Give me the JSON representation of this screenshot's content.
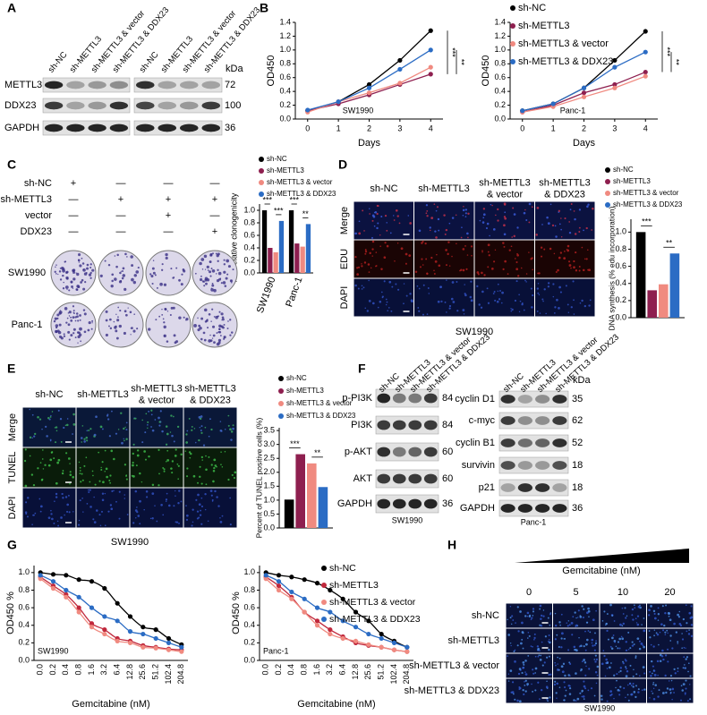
{
  "chart_data": [
    {
      "type": "line",
      "x": [
        0,
        1,
        2,
        3,
        4
      ],
      "xlim": [
        -0.4,
        4.4
      ],
      "xticks": [
        0,
        1,
        2,
        3,
        4
      ],
      "ylim": [
        0,
        1.4
      ],
      "yticks": [
        {
          "value": 0,
          "label": "0.0"
        },
        0.2,
        0.4,
        0.6,
        0.8,
        {
          "value": 1,
          "label": "1.0"
        },
        1.2,
        1.4
      ],
      "xlabel": "Days",
      "ylabel": "OD450",
      "annotation": "SW1990",
      "significance": [
        "***",
        "**"
      ],
      "series": [
        {
          "color": "#000000",
          "values": [
            0.12,
            0.25,
            0.5,
            0.85,
            1.28
          ]
        },
        {
          "color": "#8e1f4f",
          "values": [
            0.12,
            0.22,
            0.35,
            0.5,
            0.65
          ]
        },
        {
          "color": "#f08a80",
          "values": [
            0.1,
            0.25,
            0.38,
            0.52,
            0.75
          ]
        },
        {
          "color": "#2b6cc4",
          "values": [
            0.13,
            0.25,
            0.45,
            0.72,
            1.0
          ]
        }
      ]
    },
    {
      "type": "line",
      "x": [
        0,
        1,
        2,
        3,
        4
      ],
      "xlim": [
        -0.4,
        4.4
      ],
      "xticks": [
        0,
        1,
        2,
        3,
        4
      ],
      "ylim": [
        0,
        1.4
      ],
      "yticks": [
        {
          "value": 0,
          "label": "0.0"
        },
        0.2,
        0.4,
        0.6,
        0.8,
        {
          "value": 1,
          "label": "1.0"
        },
        1.2,
        1.4
      ],
      "xlabel": "Days",
      "ylabel": "OD450",
      "annotation": "Panc-1",
      "significance": [
        "***",
        "**"
      ],
      "legend": true,
      "series": [
        {
          "name": "sh-NC",
          "color": "#000000",
          "values": [
            0.12,
            0.22,
            0.45,
            0.85,
            1.27
          ]
        },
        {
          "name": "sh-METTL3",
          "color": "#8e1f4f",
          "values": [
            0.1,
            0.2,
            0.38,
            0.5,
            0.68
          ]
        },
        {
          "name": "sh-METTL3 & vector",
          "color": "#f08a80",
          "values": [
            0.1,
            0.18,
            0.32,
            0.45,
            0.62
          ]
        },
        {
          "name": "sh-METTL3 & DDX23",
          "color": "#2b6cc4",
          "values": [
            0.12,
            0.22,
            0.45,
            0.75,
            0.97
          ]
        }
      ]
    },
    {
      "type": "bar",
      "categories": [
        "SW1990",
        "Panc-1"
      ],
      "ylim": [
        0,
        1.1
      ],
      "yticks": [
        {
          "value": 0,
          "label": "0.0"
        },
        0.2,
        0.4,
        0.6,
        0.8,
        {
          "value": 1,
          "label": "1.0"
        }
      ],
      "ylabel": "The relative clonogenicity",
      "significance": [
        "***",
        "***",
        "***",
        "**"
      ],
      "legend": true,
      "series": [
        {
          "name": "sh-NC",
          "color": "#000000",
          "values": [
            1.0,
            1.0
          ]
        },
        {
          "name": "sh-METTL3",
          "color": "#8e1f4f",
          "values": [
            0.4,
            0.47
          ]
        },
        {
          "name": "sh-METTL3 & vector",
          "color": "#f08a80",
          "values": [
            0.33,
            0.42
          ]
        },
        {
          "name": "sh-METTL3 & DDX23",
          "color": "#2b6cc4",
          "values": [
            0.83,
            0.78
          ]
        }
      ]
    },
    {
      "type": "bar",
      "ylim": [
        0,
        1.15
      ],
      "yticks": [
        {
          "value": 0,
          "label": "0.0"
        },
        0.2,
        0.4,
        0.6,
        0.8,
        {
          "value": 1,
          "label": "1.0"
        }
      ],
      "ylabel": "DNA synthesis (% edu incorporation)",
      "significance": [
        "***",
        "**"
      ],
      "legend": true,
      "series": [
        {
          "name": "sh-NC",
          "color": "#000000",
          "values": [
            1.0
          ]
        },
        {
          "name": "sh-METTL3",
          "color": "#8e1f4f",
          "values": [
            0.32
          ]
        },
        {
          "name": "sh-METTL3 & vector",
          "color": "#f08a80",
          "values": [
            0.39
          ]
        },
        {
          "name": "sh-METTL3 & DDX23",
          "color": "#2b6cc4",
          "values": [
            0.75
          ]
        }
      ]
    },
    {
      "type": "bar",
      "ylim": [
        0,
        3.6
      ],
      "yticks": [
        {
          "value": 0,
          "label": "0.0"
        },
        0.5,
        {
          "value": 1,
          "label": "1.0"
        },
        1.5,
        {
          "value": 2,
          "label": "2.0"
        },
        2.5,
        {
          "value": 3,
          "label": "3.0"
        },
        3.5
      ],
      "ylabel": "Percent of TUNEL positive cells (%)",
      "significance": [
        "***",
        "**"
      ],
      "legend": true,
      "series": [
        {
          "name": "sh-NC",
          "color": "#000000",
          "values": [
            1.02
          ]
        },
        {
          "name": "sh-METTL3",
          "color": "#8e1f4f",
          "values": [
            2.65
          ]
        },
        {
          "name": "sh-METTL3 & vector",
          "color": "#f08a80",
          "values": [
            2.32
          ]
        },
        {
          "name": "sh-METTL3 & DDX23",
          "color": "#2b6cc4",
          "values": [
            1.47
          ]
        }
      ]
    },
    {
      "type": "line",
      "smooth": true,
      "categories": [
        "0.0",
        "0.2",
        "0.4",
        "0.8",
        "1.6",
        "3.2",
        "6.4",
        "12.8",
        "25.6",
        "51.2",
        "102.4",
        "204.8"
      ],
      "ylim": [
        0,
        1.08
      ],
      "yticks": [
        {
          "value": 0,
          "label": "0.0"
        },
        0.2,
        0.4,
        0.6,
        0.8,
        {
          "value": 1,
          "label": "1.0"
        }
      ],
      "xlabel": "Gemcitabine (nM)",
      "ylabel": "OD450 %",
      "annotation": "SW1990",
      "series": [
        {
          "color": "#000000",
          "values": [
            1.0,
            0.98,
            0.97,
            0.92,
            0.9,
            0.82,
            0.65,
            0.5,
            0.38,
            0.35,
            0.25,
            0.18
          ]
        },
        {
          "color": "#c0283c",
          "values": [
            0.95,
            0.85,
            0.75,
            0.6,
            0.42,
            0.35,
            0.25,
            0.22,
            0.17,
            0.15,
            0.13,
            0.12
          ]
        },
        {
          "color": "#f08a80",
          "values": [
            0.93,
            0.82,
            0.72,
            0.55,
            0.38,
            0.3,
            0.22,
            0.2,
            0.15,
            0.14,
            0.12,
            0.1
          ]
        },
        {
          "color": "#2b6cc4",
          "values": [
            0.97,
            0.9,
            0.8,
            0.72,
            0.6,
            0.5,
            0.45,
            0.33,
            0.3,
            0.25,
            0.2,
            0.15
          ]
        }
      ]
    },
    {
      "type": "line",
      "smooth": true,
      "categories": [
        "0.0",
        "0.2",
        "0.4",
        "0.8",
        "1.6",
        "3.2",
        "6.4",
        "12.8",
        "25.6",
        "51.2",
        "102.4",
        "204.8"
      ],
      "ylim": [
        0,
        1.08
      ],
      "yticks": [
        {
          "value": 0,
          "label": "0.0"
        },
        0.2,
        0.4,
        0.6,
        0.8,
        {
          "value": 1,
          "label": "1.0"
        }
      ],
      "xlabel": "Gemcitabine (nM)",
      "ylabel": "OD450 %",
      "annotation": "Panc-1",
      "legend": true,
      "series": [
        {
          "name": "sh-NC",
          "color": "#000000",
          "values": [
            1.0,
            0.97,
            0.95,
            0.92,
            0.88,
            0.8,
            0.7,
            0.55,
            0.45,
            0.3,
            0.22,
            0.15
          ]
        },
        {
          "name": "sh-METTL3",
          "color": "#c0283c",
          "values": [
            0.95,
            0.85,
            0.72,
            0.55,
            0.45,
            0.35,
            0.27,
            0.2,
            0.17,
            0.15,
            0.12,
            0.1
          ]
        },
        {
          "name": "sh-METTL3 & vector",
          "color": "#f08a80",
          "values": [
            0.93,
            0.8,
            0.7,
            0.55,
            0.4,
            0.3,
            0.25,
            0.22,
            0.18,
            0.15,
            0.12,
            0.1
          ]
        },
        {
          "name": "sh-METTL3 & DDX23",
          "color": "#2b6cc4",
          "values": [
            0.97,
            0.9,
            0.78,
            0.7,
            0.6,
            0.55,
            0.45,
            0.38,
            0.3,
            0.25,
            0.2,
            0.15
          ]
        }
      ]
    }
  ],
  "figure": {
    "panel_labels": [
      "A",
      "B",
      "C",
      "D",
      "E",
      "F",
      "G",
      "H"
    ],
    "panel_a": {
      "lanes": [
        "sh-NC",
        "sh-METTL3",
        "sh-METTL3 & vector",
        "sh-METTL3 & DDX23",
        "sh-NC",
        "sh-METTL3",
        "sh-METTL3 & vector",
        "sh-METTL3 & DDX23"
      ],
      "kda": "kDa",
      "rows": [
        {
          "label": "METTL3",
          "kda": 72
        },
        {
          "label": "DDX23",
          "kda": 100
        },
        {
          "label": "GAPDH",
          "kda": 36
        }
      ]
    },
    "panel_c": {
      "rows": [
        {
          "label": "sh-NC",
          "marks": [
            "+",
            "—",
            "—",
            "—"
          ]
        },
        {
          "label": "sh-METTL3",
          "marks": [
            "—",
            "+",
            "+",
            "+"
          ]
        },
        {
          "label": "vector",
          "marks": [
            "—",
            "—",
            "+",
            "—"
          ]
        },
        {
          "label": "DDX23",
          "marks": [
            "—",
            "—",
            "—",
            "+"
          ]
        }
      ],
      "plates": [
        "SW1990",
        "Panc-1"
      ]
    },
    "panel_d": {
      "columns": [
        [
          "sh-NC"
        ],
        [
          "sh-METTL3"
        ],
        [
          "sh-METTL3",
          "& vector"
        ],
        [
          "sh-METTL3",
          "& DDX23"
        ]
      ],
      "rows": [
        "Merge",
        "EDU",
        "DAPI"
      ],
      "caption": "SW1990"
    },
    "panel_e": {
      "columns": [
        [
          "sh-NC"
        ],
        [
          "sh-METTL3"
        ],
        [
          "sh-METTL3",
          "& vector"
        ],
        [
          "sh-METTL3",
          "& DDX23"
        ]
      ],
      "rows": [
        "Merge",
        "TUNEL",
        "DAPI"
      ],
      "caption": "SW1990"
    },
    "panel_f": {
      "left": {
        "lanes": [
          "sh-NC",
          "sh-METTL3",
          "sh-METTL3 & vector",
          "sh-METTL3 & DDX23"
        ],
        "rows": [
          {
            "label": "p-PI3K",
            "kda": 84
          },
          {
            "label": "PI3K",
            "kda": 84
          },
          {
            "label": "p-AKT",
            "kda": 60
          },
          {
            "label": "AKT",
            "kda": 60
          },
          {
            "label": "GAPDH",
            "kda": 36
          }
        ],
        "caption": "SW1990"
      },
      "right": {
        "lanes": [
          "sh-NC",
          "sh-METTL3",
          "sh-METTL3 & vector",
          "sh-METTL3 & DDX23"
        ],
        "kda": "kDa",
        "rows": [
          {
            "label": "cyclin D1",
            "kda": 35
          },
          {
            "label": "c-myc",
            "kda": 62
          },
          {
            "label": "cyclin B1",
            "kda": 52
          },
          {
            "label": "survivin",
            "kda": 18
          },
          {
            "label": "p21",
            "kda": 18
          },
          {
            "label": "GAPDH",
            "kda": 36
          }
        ],
        "caption": "Panc-1"
      }
    },
    "panel_h": {
      "title": "Gemcitabine (nM)",
      "columns": [
        0,
        5,
        10,
        20
      ],
      "rows": [
        "sh-NC",
        "sh-METTL3",
        "sh-METTL3 & vector",
        "sh-METTL3 & DDX23"
      ],
      "caption": "SW1990"
    }
  }
}
